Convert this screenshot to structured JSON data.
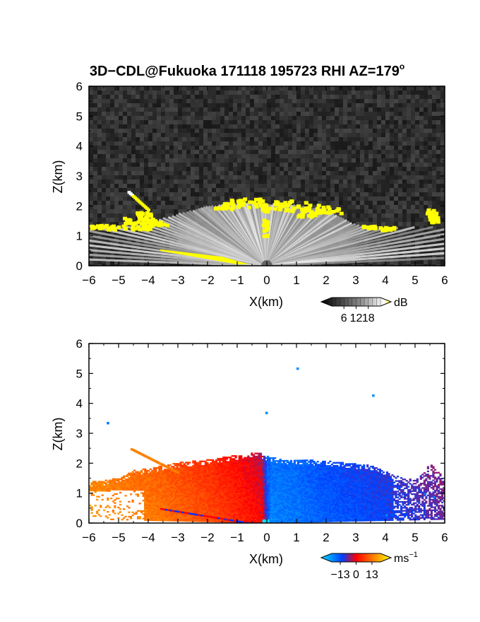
{
  "chart_data": [
    {
      "type": "heatmap",
      "title": "3D−CDL@Fukuoka 171118 195723 RHI AZ=179",
      "title_superscript": "o",
      "xlabel": "X(km)",
      "ylabel": "Z(km)",
      "xlim": [
        -6,
        6
      ],
      "ylim": [
        0,
        6
      ],
      "xticks": [
        "−6",
        "−5",
        "−4",
        "−3",
        "−2",
        "−1",
        "0",
        "1",
        "2",
        "3",
        "4",
        "5",
        "6"
      ],
      "yticks": [
        "0",
        "1",
        "2",
        "3",
        "4",
        "5",
        "6"
      ],
      "quantity": "SNR",
      "colorbar": {
        "unit": "dB",
        "ticks": [
          "6",
          "12",
          "18"
        ],
        "range": [
          0,
          24
        ],
        "colors": [
          "#000000",
          "#777777",
          "#ffffff",
          "#ffff00"
        ]
      },
      "background": "noise",
      "features": [
        {
          "label": "fan of radial beams",
          "x_range": [
            -6,
            6
          ],
          "z_top": 2.0
        },
        {
          "label": "yellow high-SNR top",
          "x": [
            -4.5,
            -4,
            -3,
            -2,
            -1,
            0,
            1,
            2,
            2.5,
            3.5,
            5.5
          ],
          "z": [
            1.5,
            1.45,
            1.75,
            1.9,
            2.1,
            2.05,
            2.0,
            1.85,
            1.6,
            1.3,
            1.8
          ]
        }
      ]
    },
    {
      "type": "heatmap",
      "xlabel": "X(km)",
      "ylabel": "Z(km)",
      "xlim": [
        -6,
        6
      ],
      "ylim": [
        0,
        6
      ],
      "xticks": [
        "−6",
        "−5",
        "−4",
        "−3",
        "−2",
        "−1",
        "0",
        "1",
        "2",
        "3",
        "4",
        "5",
        "6"
      ],
      "yticks": [
        "0",
        "1",
        "2",
        "3",
        "4",
        "5",
        "6"
      ],
      "quantity": "Doppler velocity",
      "colorbar": {
        "unit": "ms",
        "unit_superscript": "−1",
        "ticks": [
          "−13",
          "0",
          "13"
        ],
        "range": [
          -20,
          20
        ],
        "colors": [
          "#00e0ff",
          "#0040ff",
          "#ff0000",
          "#ff8000",
          "#ffff00"
        ]
      },
      "echo_top_z": [
        [
          -6,
          1.35
        ],
        [
          -5.5,
          1.4
        ],
        [
          -5,
          1.5
        ],
        [
          -4.5,
          1.75
        ],
        [
          -4,
          1.8
        ],
        [
          -3,
          2.0
        ],
        [
          -2,
          2.1
        ],
        [
          -1,
          2.25
        ],
        [
          -0.3,
          2.35
        ],
        [
          0,
          2.2
        ],
        [
          0.5,
          2.1
        ],
        [
          1,
          2.1
        ],
        [
          2,
          2.05
        ],
        [
          3,
          1.95
        ],
        [
          3.5,
          1.9
        ],
        [
          4,
          1.7
        ],
        [
          4.5,
          1.5
        ],
        [
          5,
          1.4
        ],
        [
          5.5,
          2.0
        ],
        [
          6,
          1.4
        ]
      ],
      "velocity_trend": [
        [
          -6,
          12
        ],
        [
          -4,
          10
        ],
        [
          -2,
          6
        ],
        [
          -1,
          3
        ],
        [
          -0.2,
          0.5
        ],
        [
          0.1,
          -13
        ],
        [
          1,
          -12
        ],
        [
          2,
          -10
        ],
        [
          4,
          -8
        ],
        [
          6,
          -5
        ]
      ]
    }
  ]
}
